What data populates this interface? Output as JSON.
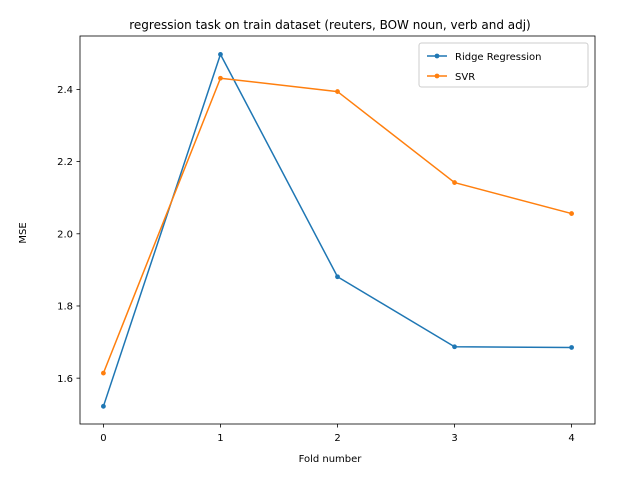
{
  "chart_data": {
    "type": "line",
    "title": "regression task on train dataset (reuters, BOW noun, verb and adj)",
    "xlabel": "Fold number",
    "ylabel": "MSE",
    "x": [
      0,
      1,
      2,
      3,
      4
    ],
    "xticks": [
      "0",
      "1",
      "2",
      "3",
      "4"
    ],
    "yticks": [
      "1.6",
      "1.8",
      "2.0",
      "2.2",
      "2.4"
    ],
    "ytick_values": [
      1.6,
      1.8,
      2.0,
      2.2,
      2.4
    ],
    "xlim": [
      -0.2,
      4.2
    ],
    "ylim": [
      1.473,
      2.548
    ],
    "grid": false,
    "legend_position": "top-right",
    "series": [
      {
        "name": "Ridge Regression",
        "color": "#1f77b4",
        "marker": "dot",
        "values": [
          1.522,
          2.497,
          1.881,
          1.687,
          1.685
        ]
      },
      {
        "name": "SVR",
        "color": "#ff7f0e",
        "marker": "dot",
        "values": [
          1.614,
          2.431,
          2.394,
          2.142,
          2.056
        ]
      }
    ]
  }
}
